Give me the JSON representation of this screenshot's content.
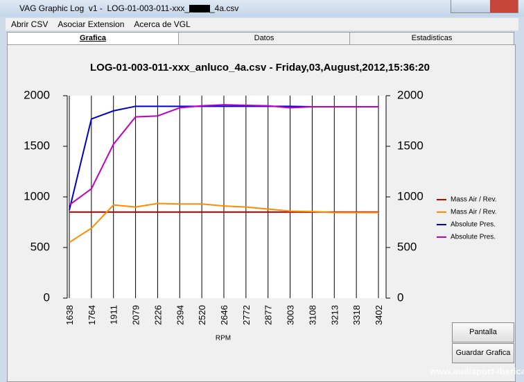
{
  "window": {
    "title_parts": [
      "VAG Graphic Log  v1 -  LOG-01-003-011-xxx_",
      "_4a.csv"
    ]
  },
  "menu": [
    "Abrir CSV",
    "Asociar Extension",
    "Acerca de VGL"
  ],
  "tabs": [
    "Grafica",
    "Datos",
    "Estadisticas"
  ],
  "buttons": [
    "Pantalla Completa",
    "Guardar Grafica"
  ],
  "watermark": "www.audisport-iberica.com",
  "chart_data": {
    "type": "line",
    "title": "LOG-01-003-011-xxx_anluco_4a.csv - Friday,03,August,2012,15:36:20",
    "x_label": "RPM",
    "categories": [
      "1638",
      "1764",
      "1911",
      "2079",
      "2226",
      "2394",
      "2520",
      "2646",
      "2772",
      "2877",
      "3003",
      "3108",
      "3213",
      "3318",
      "3402"
    ],
    "ylim": [
      0,
      2000
    ],
    "yticks": [
      0,
      500,
      1000,
      1500,
      2000
    ],
    "y2lim": [
      0,
      2000
    ],
    "y2ticks": [
      0,
      500,
      1000,
      1500,
      2000
    ],
    "grid": "x",
    "legend": "right",
    "series": [
      {
        "name": "Mass Air / Rev.",
        "color": "#c00000",
        "values": [
          850,
          850,
          850,
          850,
          850,
          850,
          850,
          850,
          850,
          850,
          850,
          850,
          850,
          850,
          850
        ]
      },
      {
        "name": "Mass Air / Rev.",
        "color": "#ff8c00",
        "values": [
          550,
          690,
          920,
          900,
          935,
          930,
          930,
          910,
          900,
          880,
          860,
          855,
          845,
          845,
          845
        ]
      },
      {
        "name": "Absolute Pres.",
        "color": "#0000c0",
        "values": [
          870,
          1770,
          1850,
          1895,
          1895,
          1895,
          1895,
          1895,
          1895,
          1895,
          1895,
          1890,
          1890,
          1890,
          1890
        ]
      },
      {
        "name": "Absolute Pres.",
        "color": "#c000c0",
        "values": [
          920,
          1080,
          1520,
          1790,
          1800,
          1880,
          1900,
          1910,
          1905,
          1900,
          1880,
          1890,
          1890,
          1890,
          1890
        ]
      }
    ]
  }
}
